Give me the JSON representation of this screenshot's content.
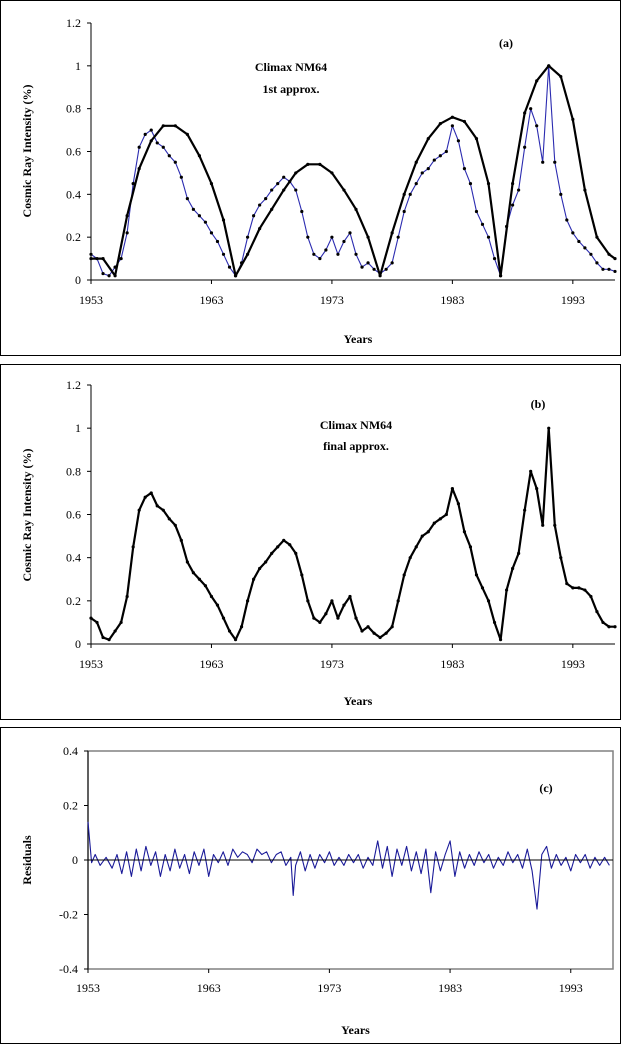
{
  "chart_data": [
    {
      "type": "line",
      "panel_label": "(a)",
      "annotation_lines": [
        "Climax NM64",
        "1st approx."
      ],
      "xlabel": "Years",
      "ylabel": "Cosmic Ray Intensity (%)",
      "xlim": [
        1953,
        1996.5
      ],
      "ylim": [
        0,
        1.2
      ],
      "xticks": [
        "1953",
        "1963",
        "1973",
        "1983",
        "1993"
      ],
      "yticks": [
        "0",
        "0.2",
        "0.4",
        "0.6",
        "0.8",
        "1",
        "1.2"
      ],
      "grid": false,
      "series": [
        {
          "color": "#2b2bb0",
          "x": [
            1953.0,
            1953.5,
            1954.0,
            1954.5,
            1955.0,
            1955.5,
            1956.0,
            1956.5,
            1957.0,
            1957.5,
            1958.0,
            1958.5,
            1959.0,
            1959.5,
            1960.0,
            1960.5,
            1961.0,
            1961.5,
            1962.0,
            1962.5,
            1963.0,
            1963.5,
            1964.0,
            1964.5,
            1965.0,
            1965.5,
            1966.0,
            1966.5,
            1967.0,
            1967.5,
            1968.0,
            1968.5,
            1969.0,
            1969.5,
            1970.0,
            1970.5,
            1971.0,
            1971.5,
            1972.0,
            1972.5,
            1973.0,
            1973.5,
            1974.0,
            1974.5,
            1975.0,
            1975.5,
            1976.0,
            1976.5,
            1977.0,
            1977.5,
            1978.0,
            1978.5,
            1979.0,
            1979.5,
            1980.0,
            1980.5,
            1981.0,
            1981.5,
            1982.0,
            1982.5,
            1983.0,
            1983.5,
            1984.0,
            1984.5,
            1985.0,
            1985.5,
            1986.0,
            1986.5,
            1987.0,
            1987.5,
            1988.0,
            1988.5,
            1989.0,
            1989.5,
            1990.0,
            1990.5,
            1991.0,
            1991.5,
            1992.0,
            1992.5,
            1993.0,
            1993.5,
            1994.0,
            1994.5,
            1995.0,
            1995.5,
            1996.0,
            1996.5
          ],
          "y": [
            0.12,
            0.1,
            0.03,
            0.02,
            0.06,
            0.1,
            0.22,
            0.45,
            0.62,
            0.68,
            0.7,
            0.64,
            0.62,
            0.58,
            0.55,
            0.48,
            0.38,
            0.33,
            0.3,
            0.27,
            0.22,
            0.18,
            0.12,
            0.06,
            0.02,
            0.08,
            0.2,
            0.3,
            0.35,
            0.38,
            0.42,
            0.45,
            0.48,
            0.46,
            0.42,
            0.32,
            0.2,
            0.12,
            0.1,
            0.14,
            0.2,
            0.12,
            0.18,
            0.22,
            0.12,
            0.06,
            0.08,
            0.05,
            0.03,
            0.05,
            0.08,
            0.2,
            0.32,
            0.4,
            0.45,
            0.5,
            0.52,
            0.56,
            0.58,
            0.6,
            0.72,
            0.65,
            0.52,
            0.45,
            0.32,
            0.26,
            0.2,
            0.1,
            0.02,
            0.25,
            0.35,
            0.42,
            0.62,
            0.8,
            0.72,
            0.55,
            1.0,
            0.55,
            0.4,
            0.28,
            0.22,
            0.18,
            0.15,
            0.12,
            0.08,
            0.05,
            0.05,
            0.04
          ]
        },
        {
          "color": "#000000",
          "x": [
            1953.0,
            1954.0,
            1955.0,
            1956.0,
            1957.0,
            1958.0,
            1959.0,
            1960.0,
            1961.0,
            1962.0,
            1963.0,
            1964.0,
            1965.0,
            1966.0,
            1967.0,
            1968.0,
            1969.0,
            1970.0,
            1971.0,
            1972.0,
            1973.0,
            1974.0,
            1975.0,
            1976.0,
            1977.0,
            1978.0,
            1979.0,
            1980.0,
            1981.0,
            1982.0,
            1983.0,
            1984.0,
            1985.0,
            1986.0,
            1987.0,
            1988.0,
            1989.0,
            1990.0,
            1991.0,
            1992.0,
            1993.0,
            1994.0,
            1995.0,
            1996.0,
            1996.5
          ],
          "y": [
            0.1,
            0.1,
            0.02,
            0.3,
            0.52,
            0.65,
            0.72,
            0.72,
            0.68,
            0.58,
            0.45,
            0.28,
            0.02,
            0.12,
            0.24,
            0.33,
            0.42,
            0.5,
            0.54,
            0.54,
            0.5,
            0.42,
            0.33,
            0.2,
            0.02,
            0.22,
            0.4,
            0.55,
            0.66,
            0.73,
            0.76,
            0.74,
            0.66,
            0.45,
            0.02,
            0.45,
            0.78,
            0.93,
            1.0,
            0.95,
            0.75,
            0.42,
            0.2,
            0.12,
            0.1
          ]
        }
      ]
    },
    {
      "type": "line",
      "panel_label": "(b)",
      "annotation_lines": [
        "Climax NM64",
        "final approx."
      ],
      "xlabel": "Years",
      "ylabel": "Cosmic Ray Intensity (%)",
      "xlim": [
        1953,
        1996.5
      ],
      "ylim": [
        0,
        1.2
      ],
      "xticks": [
        "1953",
        "1963",
        "1973",
        "1983",
        "1993"
      ],
      "yticks": [
        "0",
        "0.2",
        "0.4",
        "0.6",
        "0.8",
        "1",
        "1.2"
      ],
      "grid": false,
      "series": [
        {
          "color": "#000000",
          "x": [
            1953.0,
            1953.5,
            1954.0,
            1954.5,
            1955.0,
            1955.5,
            1956.0,
            1956.5,
            1957.0,
            1957.5,
            1958.0,
            1958.5,
            1959.0,
            1959.5,
            1960.0,
            1960.5,
            1961.0,
            1961.5,
            1962.0,
            1962.5,
            1963.0,
            1963.5,
            1964.0,
            1964.5,
            1965.0,
            1965.5,
            1966.0,
            1966.5,
            1967.0,
            1967.5,
            1968.0,
            1968.5,
            1969.0,
            1969.5,
            1970.0,
            1970.5,
            1971.0,
            1971.5,
            1972.0,
            1972.5,
            1973.0,
            1973.5,
            1974.0,
            1974.5,
            1975.0,
            1975.5,
            1976.0,
            1976.5,
            1977.0,
            1977.5,
            1978.0,
            1978.5,
            1979.0,
            1979.5,
            1980.0,
            1980.5,
            1981.0,
            1981.5,
            1982.0,
            1982.5,
            1983.0,
            1983.5,
            1984.0,
            1984.5,
            1985.0,
            1985.5,
            1986.0,
            1986.5,
            1987.0,
            1987.5,
            1988.0,
            1988.5,
            1989.0,
            1989.5,
            1990.0,
            1990.5,
            1991.0,
            1991.5,
            1992.0,
            1992.5,
            1993.0,
            1993.5,
            1994.0,
            1994.5,
            1995.0,
            1995.5,
            1996.0,
            1996.5
          ],
          "y": [
            0.12,
            0.1,
            0.03,
            0.02,
            0.06,
            0.1,
            0.22,
            0.45,
            0.62,
            0.68,
            0.7,
            0.64,
            0.62,
            0.58,
            0.55,
            0.48,
            0.38,
            0.33,
            0.3,
            0.27,
            0.22,
            0.18,
            0.12,
            0.06,
            0.02,
            0.08,
            0.2,
            0.3,
            0.35,
            0.38,
            0.42,
            0.45,
            0.48,
            0.46,
            0.42,
            0.32,
            0.2,
            0.12,
            0.1,
            0.14,
            0.2,
            0.12,
            0.18,
            0.22,
            0.12,
            0.06,
            0.08,
            0.05,
            0.03,
            0.05,
            0.08,
            0.2,
            0.32,
            0.4,
            0.45,
            0.5,
            0.52,
            0.56,
            0.58,
            0.6,
            0.72,
            0.65,
            0.52,
            0.45,
            0.32,
            0.26,
            0.2,
            0.1,
            0.02,
            0.25,
            0.35,
            0.42,
            0.62,
            0.8,
            0.72,
            0.55,
            1.0,
            0.55,
            0.4,
            0.28,
            0.26,
            0.26,
            0.25,
            0.22,
            0.15,
            0.1,
            0.08,
            0.08
          ]
        }
      ]
    },
    {
      "type": "line",
      "panel_label": "(c)",
      "xlabel": "Years",
      "ylabel": "Residuals",
      "xlim": [
        1953,
        1996.5
      ],
      "ylim": [
        -0.4,
        0.4
      ],
      "xticks": [
        "1953",
        "1963",
        "1973",
        "1983",
        "1993"
      ],
      "yticks": [
        "-0.4",
        "-0.2",
        "0",
        "0.2",
        "0.4"
      ],
      "grid": false,
      "plot_background": "#ffffff",
      "plot_border": "#808080",
      "series": [
        {
          "color": "#1a1a99",
          "x": [
            1953.0,
            1953.3,
            1953.6,
            1954.0,
            1954.5,
            1955.0,
            1955.4,
            1955.8,
            1956.2,
            1956.6,
            1957.0,
            1957.4,
            1957.8,
            1958.2,
            1958.6,
            1959.0,
            1959.4,
            1959.8,
            1960.2,
            1960.6,
            1961.0,
            1961.4,
            1961.8,
            1962.2,
            1962.6,
            1963.0,
            1963.4,
            1963.8,
            1964.2,
            1964.6,
            1965.0,
            1965.4,
            1965.8,
            1966.2,
            1966.6,
            1967.0,
            1967.4,
            1967.8,
            1968.2,
            1968.6,
            1969.0,
            1969.4,
            1969.8,
            1970.0,
            1970.2,
            1970.6,
            1971.0,
            1971.4,
            1971.8,
            1972.2,
            1972.6,
            1973.0,
            1973.4,
            1973.8,
            1974.2,
            1974.6,
            1975.0,
            1975.4,
            1975.8,
            1976.2,
            1976.6,
            1977.0,
            1977.4,
            1977.8,
            1978.2,
            1978.6,
            1979.0,
            1979.4,
            1979.8,
            1980.2,
            1980.6,
            1981.0,
            1981.4,
            1981.8,
            1982.2,
            1982.6,
            1983.0,
            1983.4,
            1983.8,
            1984.2,
            1984.6,
            1985.0,
            1985.4,
            1985.8,
            1986.2,
            1986.6,
            1987.0,
            1987.4,
            1987.8,
            1988.2,
            1988.6,
            1989.0,
            1989.4,
            1989.8,
            1990.2,
            1990.6,
            1991.0,
            1991.4,
            1991.8,
            1992.2,
            1992.6,
            1993.0,
            1993.4,
            1993.8,
            1994.2,
            1994.6,
            1995.0,
            1995.4,
            1995.8,
            1996.2
          ],
          "y": [
            0.14,
            -0.01,
            0.02,
            -0.02,
            0.01,
            -0.03,
            0.02,
            -0.05,
            0.03,
            -0.06,
            0.04,
            -0.04,
            0.05,
            -0.02,
            0.03,
            -0.06,
            0.02,
            -0.04,
            0.04,
            -0.03,
            0.02,
            -0.05,
            0.03,
            -0.02,
            0.04,
            -0.06,
            0.02,
            -0.01,
            0.03,
            -0.02,
            0.04,
            0.01,
            0.03,
            0.02,
            -0.01,
            0.04,
            0.02,
            0.03,
            -0.01,
            0.02,
            0.03,
            -0.02,
            0.01,
            -0.13,
            -0.02,
            0.03,
            -0.04,
            0.02,
            -0.03,
            0.02,
            -0.01,
            0.03,
            -0.02,
            0.01,
            -0.02,
            0.02,
            -0.01,
            0.02,
            -0.03,
            0.01,
            -0.02,
            0.07,
            -0.03,
            0.05,
            -0.06,
            0.04,
            -0.02,
            0.05,
            -0.04,
            0.03,
            -0.05,
            0.04,
            -0.12,
            0.03,
            -0.04,
            0.02,
            0.07,
            -0.06,
            0.03,
            -0.03,
            0.02,
            -0.02,
            0.03,
            -0.01,
            0.02,
            -0.03,
            0.01,
            -0.02,
            0.03,
            -0.01,
            0.02,
            -0.03,
            0.04,
            -0.04,
            -0.18,
            0.02,
            0.05,
            -0.03,
            0.02,
            -0.02,
            0.01,
            -0.04,
            0.02,
            -0.01,
            0.02,
            -0.03,
            0.01,
            -0.02,
            0.01,
            -0.02
          ]
        },
        {
          "color": "#000000",
          "x": [
            1953.0,
            1996.5
          ],
          "y": [
            0,
            0
          ]
        }
      ]
    }
  ]
}
